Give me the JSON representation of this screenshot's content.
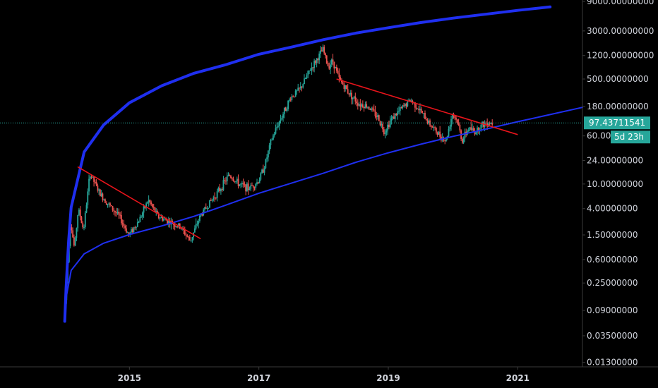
{
  "chart_data": {
    "type": "candlestick",
    "y_scale": "log",
    "ylim": [
      0.011,
      9500
    ],
    "xlim": [
      2013.0,
      2022.0
    ],
    "y_ticks": [
      {
        "value": 9000,
        "label": "9000.00000000"
      },
      {
        "value": 3000,
        "label": "3000.00000000"
      },
      {
        "value": 1200,
        "label": "1200.00000000"
      },
      {
        "value": 500,
        "label": "500.00000000"
      },
      {
        "value": 180,
        "label": "180.00000000"
      },
      {
        "value": 60,
        "label": "60.00000000"
      },
      {
        "value": 24,
        "label": "24.00000000"
      },
      {
        "value": 10,
        "label": "10.00000000"
      },
      {
        "value": 4,
        "label": "4.00000000"
      },
      {
        "value": 1.5,
        "label": "1.50000000"
      },
      {
        "value": 0.6,
        "label": "0.60000000"
      },
      {
        "value": 0.25,
        "label": "0.25000000"
      },
      {
        "value": 0.09,
        "label": "0.09000000"
      },
      {
        "value": 0.035,
        "label": "0.03500000"
      },
      {
        "value": 0.013,
        "label": "0.01300000"
      }
    ],
    "x_ticks": [
      {
        "value": 2015,
        "label": "2015"
      },
      {
        "value": 2017,
        "label": "2017"
      },
      {
        "value": 2019,
        "label": "2019"
      },
      {
        "value": 2021,
        "label": "2021"
      }
    ],
    "price_path": [
      [
        2014.0,
        0.06
      ],
      [
        2014.04,
        0.3
      ],
      [
        2014.1,
        2.5
      ],
      [
        2014.16,
        0.9
      ],
      [
        2014.22,
        4.0
      ],
      [
        2014.3,
        1.8
      ],
      [
        2014.4,
        15.0
      ],
      [
        2014.55,
        7.0
      ],
      [
        2014.7,
        4.5
      ],
      [
        2014.85,
        3.0
      ],
      [
        2015.0,
        1.5
      ],
      [
        2015.15,
        2.5
      ],
      [
        2015.3,
        5.5
      ],
      [
        2015.45,
        3.0
      ],
      [
        2015.6,
        2.5
      ],
      [
        2015.8,
        2.0
      ],
      [
        2015.95,
        1.2
      ],
      [
        2016.1,
        3.0
      ],
      [
        2016.25,
        5.0
      ],
      [
        2016.4,
        8.0
      ],
      [
        2016.55,
        14.0
      ],
      [
        2016.7,
        10.0
      ],
      [
        2016.85,
        8.5
      ],
      [
        2017.0,
        11.0
      ],
      [
        2017.1,
        20.0
      ],
      [
        2017.2,
        50.0
      ],
      [
        2017.3,
        90.0
      ],
      [
        2017.4,
        150.0
      ],
      [
        2017.5,
        250.0
      ],
      [
        2017.65,
        350.0
      ],
      [
        2017.8,
        700.0
      ],
      [
        2017.92,
        1100.0
      ],
      [
        2018.0,
        1500.0
      ],
      [
        2018.08,
        800.0
      ],
      [
        2018.15,
        1000.0
      ],
      [
        2018.25,
        500.0
      ],
      [
        2018.4,
        300.0
      ],
      [
        2018.55,
        200.0
      ],
      [
        2018.7,
        180.0
      ],
      [
        2018.85,
        120.0
      ],
      [
        2018.95,
        70.0
      ],
      [
        2019.05,
        110.0
      ],
      [
        2019.2,
        160.0
      ],
      [
        2019.35,
        230.0
      ],
      [
        2019.45,
        180.0
      ],
      [
        2019.6,
        110.0
      ],
      [
        2019.75,
        70.0
      ],
      [
        2019.9,
        50.0
      ],
      [
        2020.0,
        140.0
      ],
      [
        2020.08,
        100.0
      ],
      [
        2020.15,
        50.0
      ],
      [
        2020.25,
        80.0
      ],
      [
        2020.35,
        70.0
      ],
      [
        2020.45,
        90.0
      ],
      [
        2020.55,
        100.0
      ],
      [
        2020.6,
        97.4
      ]
    ],
    "annotations": [
      {
        "kind": "upper-curve",
        "color": "#1f2ff0",
        "points": [
          [
            2014.0,
            0.06
          ],
          [
            2014.02,
            0.2
          ],
          [
            2014.06,
            1.2
          ],
          [
            2014.1,
            4.2
          ],
          [
            2014.3,
            33
          ],
          [
            2014.6,
            90
          ],
          [
            2015.0,
            206
          ],
          [
            2015.5,
            390
          ],
          [
            2016.0,
            620
          ],
          [
            2016.5,
            860
          ],
          [
            2017.0,
            1260
          ],
          [
            2017.5,
            1640
          ],
          [
            2018.0,
            2170
          ],
          [
            2018.5,
            2770
          ],
          [
            2019.0,
            3380
          ],
          [
            2019.5,
            4100
          ],
          [
            2020.0,
            4840
          ],
          [
            2020.5,
            5580
          ],
          [
            2021.0,
            6450
          ],
          [
            2021.5,
            7350
          ]
        ]
      },
      {
        "kind": "lower-curve",
        "color": "#1f2ff0",
        "points": [
          [
            2014.0,
            0.06
          ],
          [
            2014.03,
            0.16
          ],
          [
            2014.1,
            0.4
          ],
          [
            2014.3,
            0.74
          ],
          [
            2014.6,
            1.1
          ],
          [
            2015.0,
            1.52
          ],
          [
            2015.5,
            2.1
          ],
          [
            2016.0,
            3.0
          ],
          [
            2016.5,
            4.6
          ],
          [
            2017.0,
            7.1
          ],
          [
            2017.5,
            10.3
          ],
          [
            2018.0,
            15.0
          ],
          [
            2018.5,
            22.5
          ],
          [
            2019.0,
            32.0
          ],
          [
            2019.5,
            44.0
          ],
          [
            2020.0,
            59.0
          ],
          [
            2020.5,
            77.0
          ],
          [
            2021.0,
            102.0
          ],
          [
            2021.5,
            133.0
          ],
          [
            2022.0,
            174.0
          ]
        ]
      },
      {
        "kind": "trendline",
        "color": "#e8141b",
        "from": [
          2014.2,
          19.0
        ],
        "to": [
          2016.1,
          1.3
        ]
      },
      {
        "kind": "trendline",
        "color": "#e8141b",
        "from": [
          2018.2,
          500.0
        ],
        "to": [
          2021.0,
          63.0
        ]
      }
    ],
    "last_price": {
      "value": 97.43711541,
      "label": "97.43711541",
      "countdown": "5d 23h",
      "color": "#26a69a"
    }
  }
}
